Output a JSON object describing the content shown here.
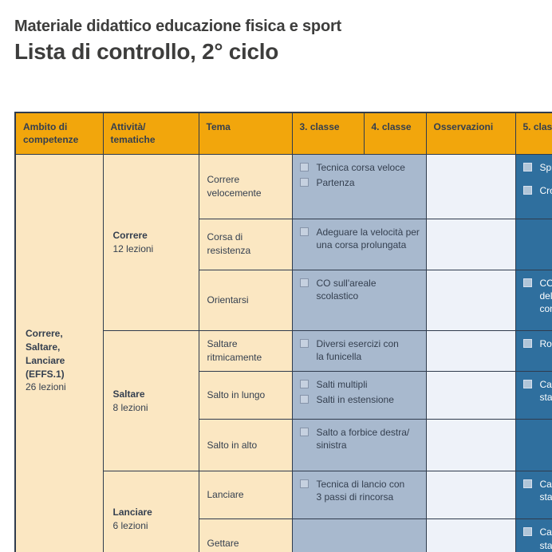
{
  "page": {
    "supertitle": "Materiale didattico educazione fisica e sport",
    "title": "Lista di controllo, 2° ciclo"
  },
  "colors": {
    "header_orange": "#f2a60c",
    "row_cream": "#fbe7c2",
    "check_cell_blue": "#a8b9ce",
    "observation_cell": "#eef2f9",
    "class5_blue": "#2f6f9e",
    "grid_border": "#2f3b4d",
    "text_navy": "#343f4f",
    "title_gray": "#3d3d3c"
  },
  "table": {
    "headers": [
      "Ambito di\ncompetenze",
      "Attività/\ntematiche",
      "Tema",
      "3. classe",
      "4. classe",
      "Osservazioni",
      "5. classe"
    ],
    "ambito": {
      "title": "Correre,\nSaltare,\nLanciare\n(EFFS.1)",
      "sub": "26 lezioni"
    },
    "groups": [
      {
        "label": "Correre",
        "sub": "12 lezioni"
      },
      {
        "label": "Saltare",
        "sub": "8 lezioni"
      },
      {
        "label": "Lanciare",
        "sub": "6 lezioni"
      }
    ],
    "rows": [
      {
        "tema": "Correre\nvelocemente",
        "items34": [
          "Tecnica corsa veloce",
          "Partenza"
        ],
        "oss": "",
        "items5": [
          "Spr",
          "Cro"
        ]
      },
      {
        "tema": "Corsa di\nresistenza",
        "items34": [
          "Adeguare la velocità per\nuna corsa prolungata"
        ],
        "oss": "",
        "items5": []
      },
      {
        "tema": "Orientarsi",
        "items34": [
          "CO sull'areale\nscolastico"
        ],
        "oss": "",
        "items5": [
          "CO\ndel\ncon"
        ]
      },
      {
        "tema": "Saltare\nritmicamente",
        "items34": [
          "Diversi esercizi con\nla funicella"
        ],
        "oss": "",
        "items5": [
          "Rop"
        ]
      },
      {
        "tema": "Salto in lungo",
        "items34": [
          "Salti multipli",
          "Salti in estensione"
        ],
        "oss": "",
        "items5": [
          "Cac\nstar"
        ]
      },
      {
        "tema": "Salto in alto",
        "items34": [
          "Salto a forbice destra/\nsinistra"
        ],
        "oss": "",
        "items5": []
      },
      {
        "tema": "Lanciare",
        "items34": [
          "Tecnica di lancio con\n3 passi di rincorsa"
        ],
        "oss": "",
        "items5": [
          "Cac\nstar"
        ]
      },
      {
        "tema": "Gettare",
        "items34": [],
        "oss": "",
        "items5": [
          "Cac\nstar"
        ]
      }
    ]
  }
}
